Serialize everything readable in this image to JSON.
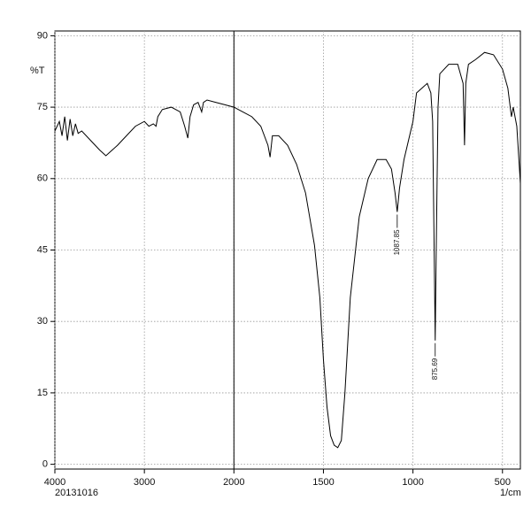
{
  "chart_data": {
    "type": "line",
    "y_label": "%T",
    "x_label": "1/cm",
    "date_stamp": "20131016",
    "x": [
      4000,
      3950,
      3920,
      3890,
      3860,
      3830,
      3800,
      3770,
      3740,
      3700,
      3600,
      3500,
      3430,
      3300,
      3200,
      3100,
      3000,
      2950,
      2900,
      2870,
      2850,
      2800,
      2700,
      2600,
      2550,
      2515,
      2490,
      2450,
      2400,
      2360,
      2340,
      2300,
      2200,
      2100,
      2000,
      1900,
      1850,
      1810,
      1798,
      1785,
      1750,
      1700,
      1650,
      1600,
      1550,
      1520,
      1500,
      1480,
      1460,
      1440,
      1420,
      1400,
      1380,
      1350,
      1300,
      1250,
      1200,
      1150,
      1120,
      1100,
      1087.85,
      1075,
      1050,
      1000,
      980,
      950,
      920,
      900,
      890,
      880,
      875.69,
      870,
      860,
      850,
      800,
      750,
      720,
      712,
      705,
      690,
      650,
      600,
      550,
      500,
      470,
      450,
      440,
      420,
      400
    ],
    "values": [
      70,
      72,
      69,
      73,
      68,
      72.5,
      69,
      71.5,
      69.5,
      70,
      68,
      66,
      64.8,
      67,
      69,
      71,
      72,
      71,
      71.5,
      71,
      73,
      74.5,
      75,
      74,
      71,
      68.5,
      73,
      75.5,
      76,
      74,
      76,
      76.5,
      76,
      75.5,
      75,
      73,
      71,
      67,
      64.5,
      69,
      69,
      67,
      63,
      57,
      46,
      35,
      22,
      12,
      6,
      4,
      3.5,
      5,
      15,
      35,
      52,
      60,
      64,
      64,
      62,
      57,
      53,
      58,
      64,
      72,
      78,
      79,
      80,
      78,
      72,
      40,
      26,
      45,
      75,
      82,
      84,
      84,
      80,
      67,
      80,
      84,
      85,
      86.5,
      86,
      83,
      79,
      73,
      75,
      71,
      59
    ],
    "color": "#000000",
    "xlim": [
      4000,
      400
    ],
    "xticks": [
      4000,
      3000,
      2000,
      1500,
      1000,
      500
    ],
    "ylim": [
      -1,
      91
    ],
    "yticks": [
      0,
      15,
      30,
      45,
      60,
      75,
      90
    ],
    "grid": true,
    "axis_break": 2000,
    "peak_labels": [
      {
        "x": 1087.85,
        "y": 53
      },
      {
        "x": 875.69,
        "y": 26
      }
    ]
  }
}
